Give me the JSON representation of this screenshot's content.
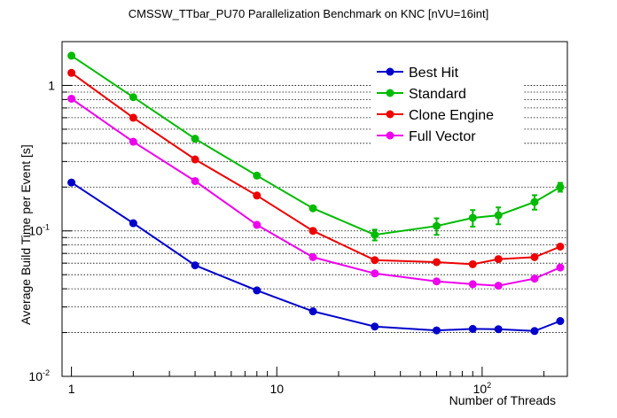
{
  "chart_data": {
    "type": "line",
    "title": "CMSSW_TTbar_PU70 Parallelization Benchmark on KNC [nVU=16int]",
    "xlabel": "Number of Threads",
    "ylabel": "Average Build Time per Event [s]",
    "xscale": "log",
    "yscale": "log",
    "xlim": [
      0.9,
      260
    ],
    "ylim": [
      0.01,
      2
    ],
    "x_tick_labels": [
      {
        "value": 1,
        "base": "1",
        "exp": ""
      },
      {
        "value": 10,
        "base": "10",
        "exp": ""
      },
      {
        "value": 100,
        "base": "10",
        "exp": "2"
      }
    ],
    "y_tick_labels": [
      {
        "value": 0.01,
        "base": "10",
        "exp": "-2"
      },
      {
        "value": 0.1,
        "base": "10",
        "exp": "-1"
      },
      {
        "value": 1,
        "base": "1",
        "exp": ""
      }
    ],
    "grid": "horizontal dotted",
    "legend_position": "top-right",
    "x": [
      1,
      2,
      4,
      8,
      15,
      30,
      60,
      90,
      120,
      180,
      240
    ],
    "series": [
      {
        "name": "Best Hit",
        "color": "#0000cc",
        "values": [
          0.215,
          0.113,
          0.058,
          0.039,
          0.028,
          0.022,
          0.0207,
          0.0212,
          0.0211,
          0.0205,
          0.024
        ],
        "errors": [
          0,
          0,
          0,
          0,
          0,
          0,
          0,
          0,
          0,
          0,
          0
        ]
      },
      {
        "name": "Standard",
        "color": "#00bb00",
        "values": [
          1.6,
          0.83,
          0.43,
          0.24,
          0.143,
          0.094,
          0.108,
          0.123,
          0.128,
          0.158,
          0.2
        ],
        "errors": [
          0,
          0,
          0,
          0,
          0,
          0.008,
          0.014,
          0.016,
          0.017,
          0.018,
          0.014
        ]
      },
      {
        "name": "Clone Engine",
        "color": "#ee0000",
        "values": [
          1.22,
          0.6,
          0.31,
          0.175,
          0.1,
          0.063,
          0.061,
          0.059,
          0.064,
          0.066,
          0.078
        ],
        "errors": [
          0,
          0,
          0,
          0,
          0,
          0,
          0,
          0,
          0,
          0,
          0
        ]
      },
      {
        "name": "Full Vector",
        "color": "#ee00ee",
        "values": [
          0.81,
          0.41,
          0.22,
          0.11,
          0.066,
          0.051,
          0.045,
          0.043,
          0.042,
          0.047,
          0.056
        ],
        "errors": [
          0,
          0,
          0,
          0,
          0,
          0,
          0,
          0,
          0,
          0,
          0
        ]
      }
    ]
  }
}
